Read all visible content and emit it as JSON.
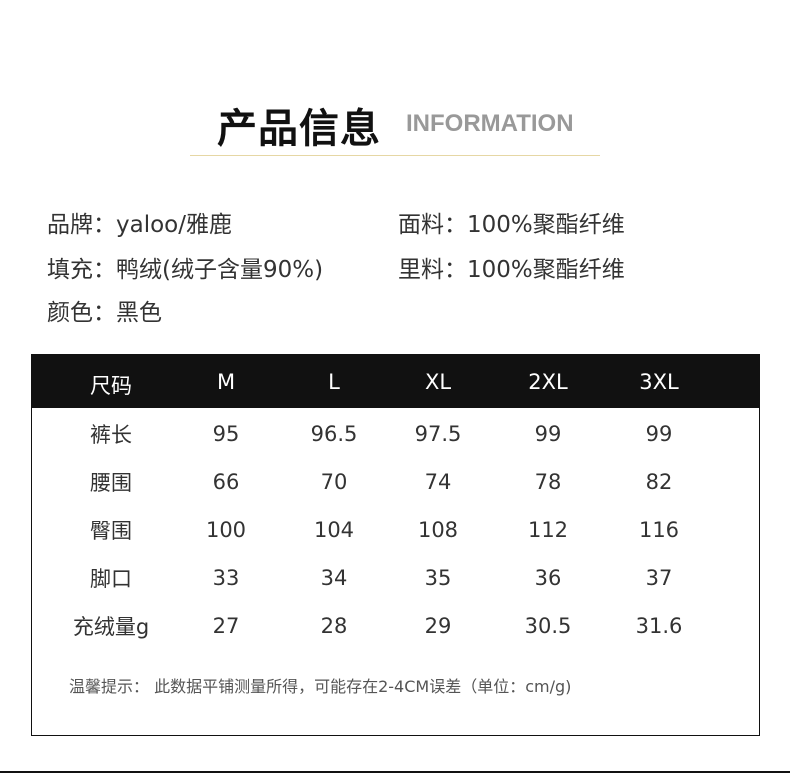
{
  "header": {
    "title": "产品信息",
    "subtitle": "INFORMATION"
  },
  "info": [
    {
      "label": "品牌：",
      "value": "yaloo/雅鹿"
    },
    {
      "label": "面料：",
      "value": "100%聚酯纤维"
    },
    {
      "label": "填充：",
      "value": "鸭绒(绒子含量90%)"
    },
    {
      "label": "里料：",
      "value": "100%聚酯纤维"
    },
    {
      "label": "颜色：",
      "value": "黑色"
    }
  ],
  "table": {
    "headers": [
      "尺码",
      "M",
      "L",
      "XL",
      "2XL",
      "3XL"
    ],
    "rows": [
      [
        "裤长",
        "95",
        "96.5",
        "97.5",
        "99",
        "99"
      ],
      [
        "腰围",
        "66",
        "70",
        "74",
        "78",
        "82"
      ],
      [
        "臀围",
        "100",
        "104",
        "108",
        "112",
        "116"
      ],
      [
        "脚口",
        "33",
        "34",
        "35",
        "36",
        "37"
      ],
      [
        "充绒量g",
        "27",
        "28",
        "29",
        "30.5",
        "31.6"
      ]
    ],
    "note": "温馨提示： 此数据平铺测量所得，可能存在2-4CM误差（单位：cm/g)"
  }
}
